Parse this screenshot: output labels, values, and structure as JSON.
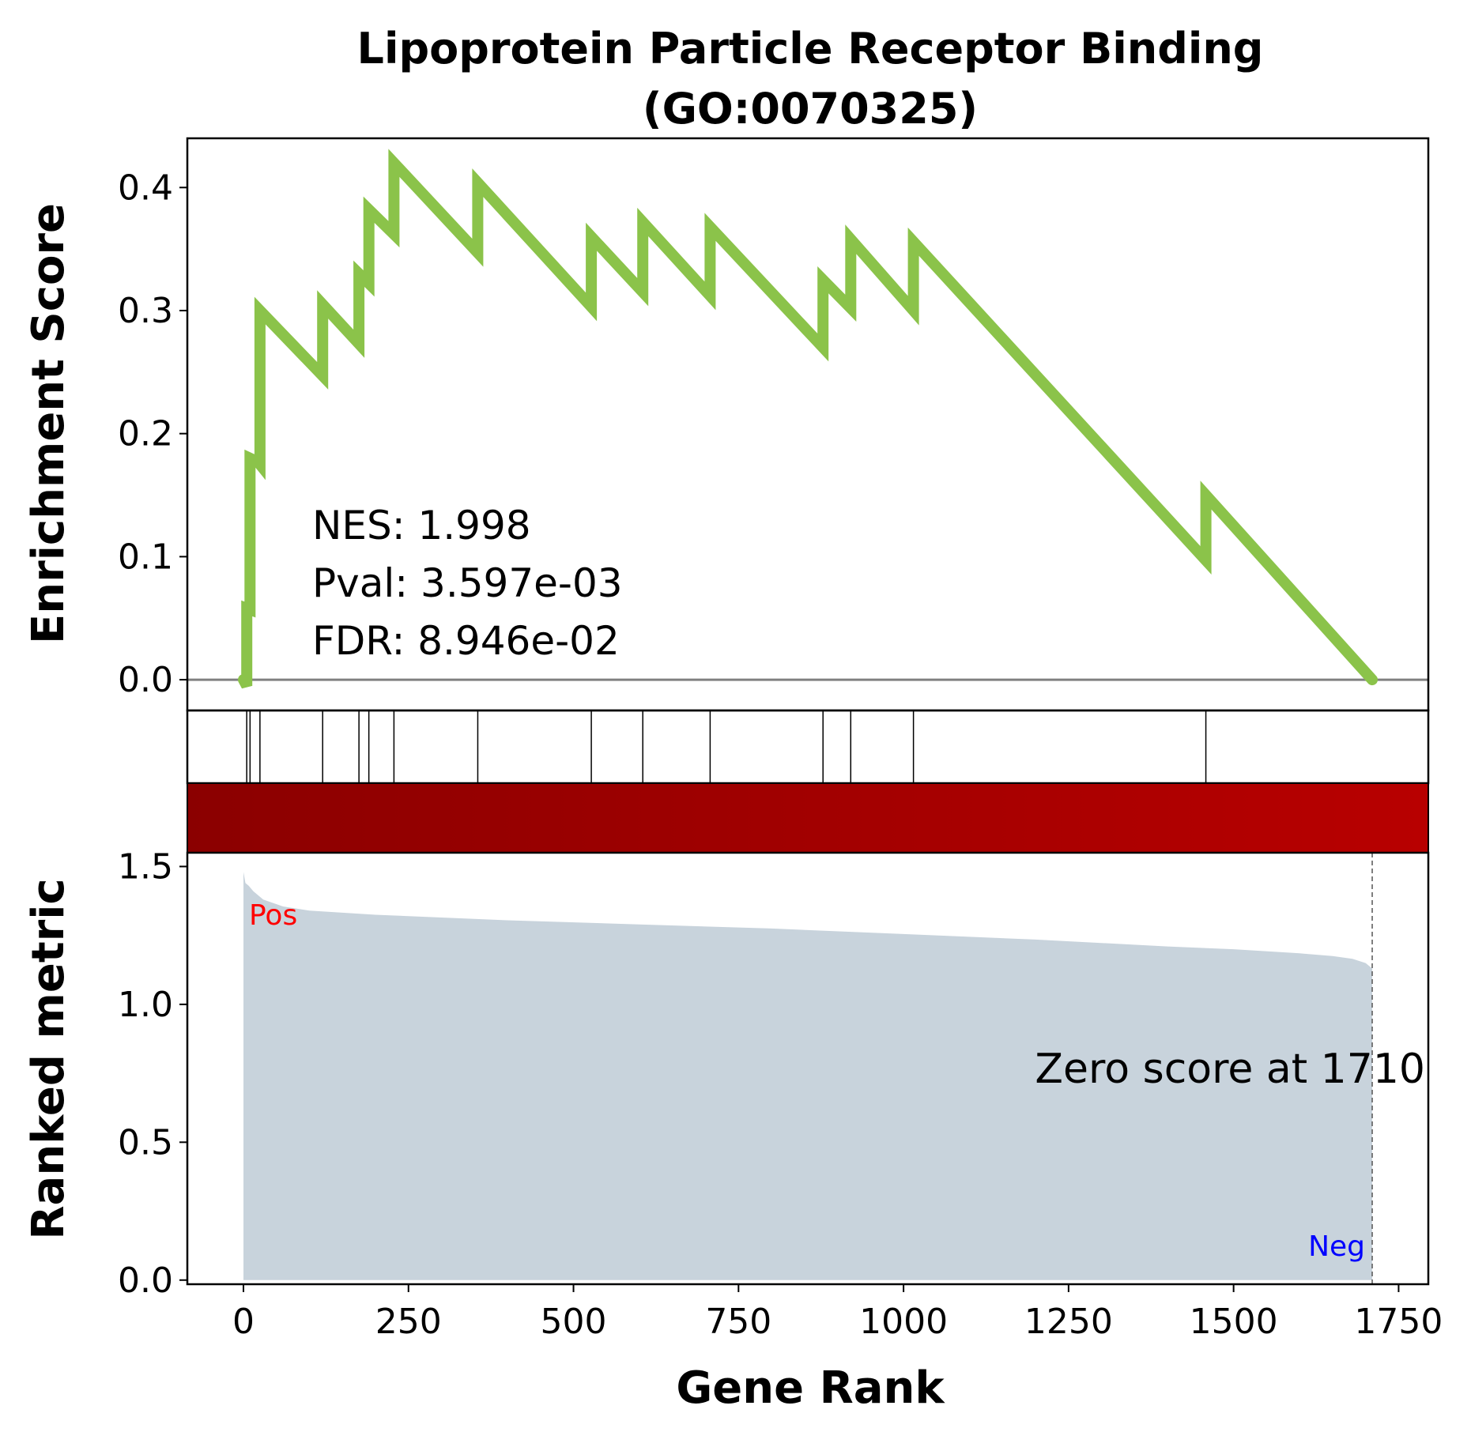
{
  "chart_data": {
    "type": "line",
    "title_line1": "Lipoprotein Particle Receptor Binding",
    "title_line2": "(GO:0070325)",
    "xlabel": "Gene Rank",
    "ylabel_top": "Enrichment Score",
    "ylabel_bottom": "Ranked metric",
    "xlim": [
      -85,
      1795
    ],
    "es_ylim": [
      -0.025,
      0.44
    ],
    "metric_ylim": [
      -0.015,
      1.55
    ],
    "x_ticks": [
      0,
      250,
      500,
      750,
      1000,
      1250,
      1500,
      1750
    ],
    "x_tick_labels": [
      "0",
      "250",
      "500",
      "750",
      "1000",
      "1250",
      "1500",
      "1750"
    ],
    "es_ticks": [
      0.0,
      0.1,
      0.2,
      0.3,
      0.4
    ],
    "es_tick_labels": [
      "0.0",
      "0.1",
      "0.2",
      "0.3",
      "0.4"
    ],
    "metric_ticks": [
      0.0,
      0.5,
      1.0,
      1.5
    ],
    "metric_tick_labels": [
      "0.0",
      "0.5",
      "1.0",
      "1.5"
    ],
    "stats": {
      "nes": "NES: 1.998",
      "pval": "Pval: 3.597e-03",
      "fdr": "FDR: 8.946e-02"
    },
    "zero_score_label": "Zero score at 1710",
    "zero_score_rank": 1710,
    "pos_label": "Pos",
    "neg_label": "Neg",
    "n_genes": 1710,
    "hit_ranks": [
      5,
      10,
      25,
      120,
      175,
      190,
      228,
      355,
      527,
      605,
      707,
      878,
      920,
      1015,
      1458
    ],
    "es_curve": [
      [
        0,
        0.0
      ],
      [
        5,
        -0.005
      ],
      [
        5,
        0.058
      ],
      [
        10,
        0.057
      ],
      [
        10,
        0.18
      ],
      [
        22,
        0.177
      ],
      [
        25,
        0.175
      ],
      [
        25,
        0.3
      ],
      [
        120,
        0.247
      ],
      [
        120,
        0.305
      ],
      [
        175,
        0.273
      ],
      [
        175,
        0.33
      ],
      [
        190,
        0.322
      ],
      [
        190,
        0.382
      ],
      [
        228,
        0.362
      ],
      [
        228,
        0.42
      ],
      [
        355,
        0.347
      ],
      [
        355,
        0.404
      ],
      [
        527,
        0.303
      ],
      [
        527,
        0.36
      ],
      [
        605,
        0.315
      ],
      [
        605,
        0.372
      ],
      [
        707,
        0.312
      ],
      [
        707,
        0.368
      ],
      [
        878,
        0.27
      ],
      [
        878,
        0.325
      ],
      [
        920,
        0.302
      ],
      [
        920,
        0.358
      ],
      [
        1015,
        0.3
      ],
      [
        1015,
        0.356
      ],
      [
        1458,
        0.097
      ],
      [
        1458,
        0.15
      ],
      [
        1710,
        0.0
      ]
    ],
    "metric_curve": [
      [
        0,
        1.48
      ],
      [
        3,
        1.44
      ],
      [
        8,
        1.43
      ],
      [
        15,
        1.41
      ],
      [
        30,
        1.38
      ],
      [
        60,
        1.355
      ],
      [
        100,
        1.34
      ],
      [
        200,
        1.325
      ],
      [
        400,
        1.305
      ],
      [
        600,
        1.29
      ],
      [
        800,
        1.275
      ],
      [
        1000,
        1.255
      ],
      [
        1200,
        1.235
      ],
      [
        1400,
        1.21
      ],
      [
        1500,
        1.2
      ],
      [
        1600,
        1.185
      ],
      [
        1650,
        1.175
      ],
      [
        1680,
        1.165
      ],
      [
        1700,
        1.15
      ],
      [
        1710,
        1.13
      ]
    ],
    "colors": {
      "es_line": "#8bc34a",
      "zero_line": "#808080",
      "metric_fill": "#c8d3dc",
      "gradient_start": "#8b0000",
      "gradient_end": "#b80000",
      "pos_label": "#ff0000",
      "neg_label": "#0000ff"
    }
  }
}
